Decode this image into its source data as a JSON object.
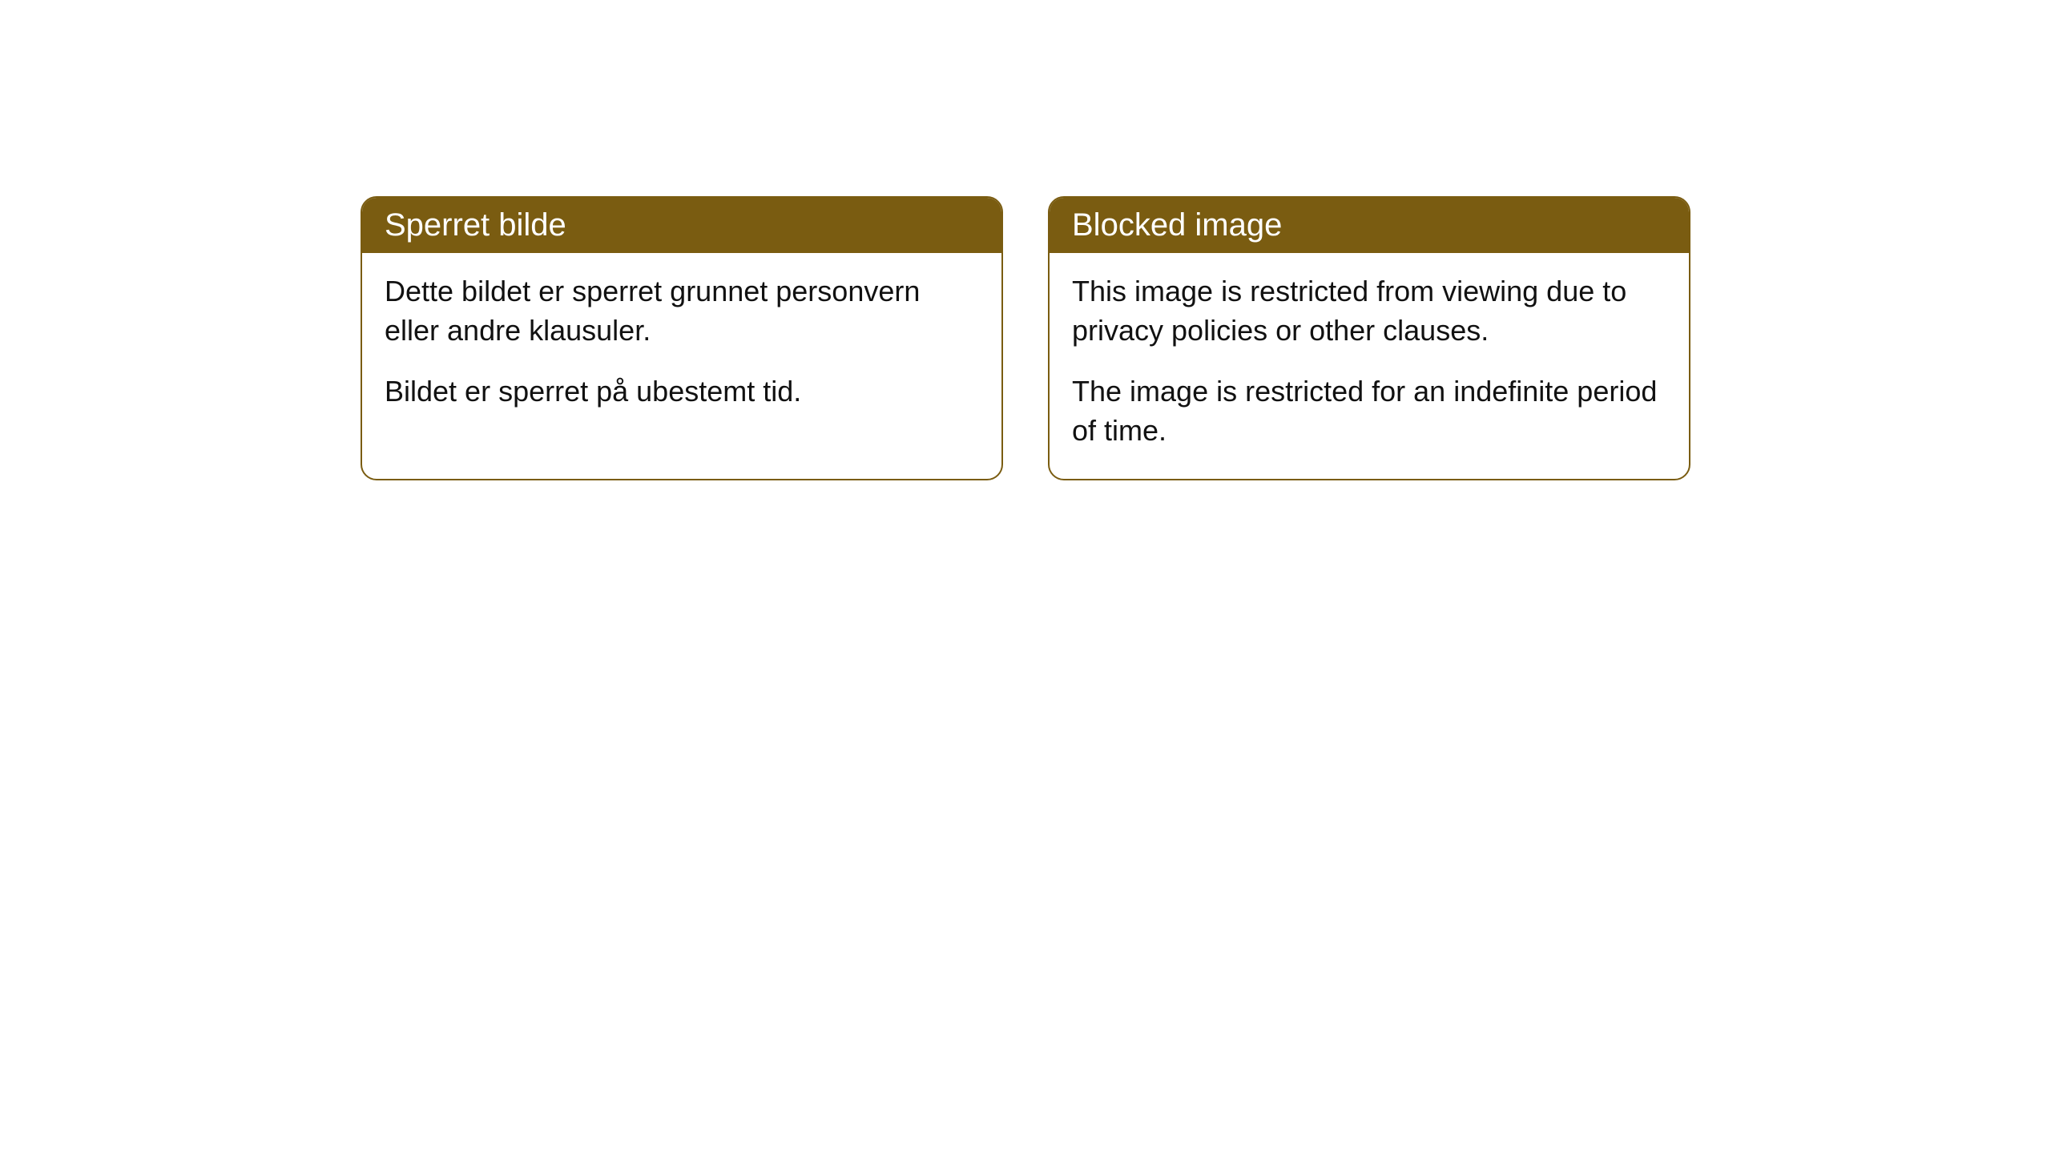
{
  "cards": [
    {
      "title": "Sperret bilde",
      "paragraph1": "Dette bildet er sperret grunnet personvern eller andre klausuler.",
      "paragraph2": "Bildet er sperret på ubestemt tid."
    },
    {
      "title": "Blocked image",
      "paragraph1": "This image is restricted from viewing due to privacy policies or other clauses.",
      "paragraph2": "The image is restricted for an indefinite period of time."
    }
  ],
  "styling": {
    "header_background": "#7a5c11",
    "header_text_color": "#ffffff",
    "border_color": "#7a5c11",
    "body_text_color": "#111111",
    "background_color": "#ffffff",
    "border_radius": 20,
    "title_fontsize": 40,
    "body_fontsize": 36
  }
}
